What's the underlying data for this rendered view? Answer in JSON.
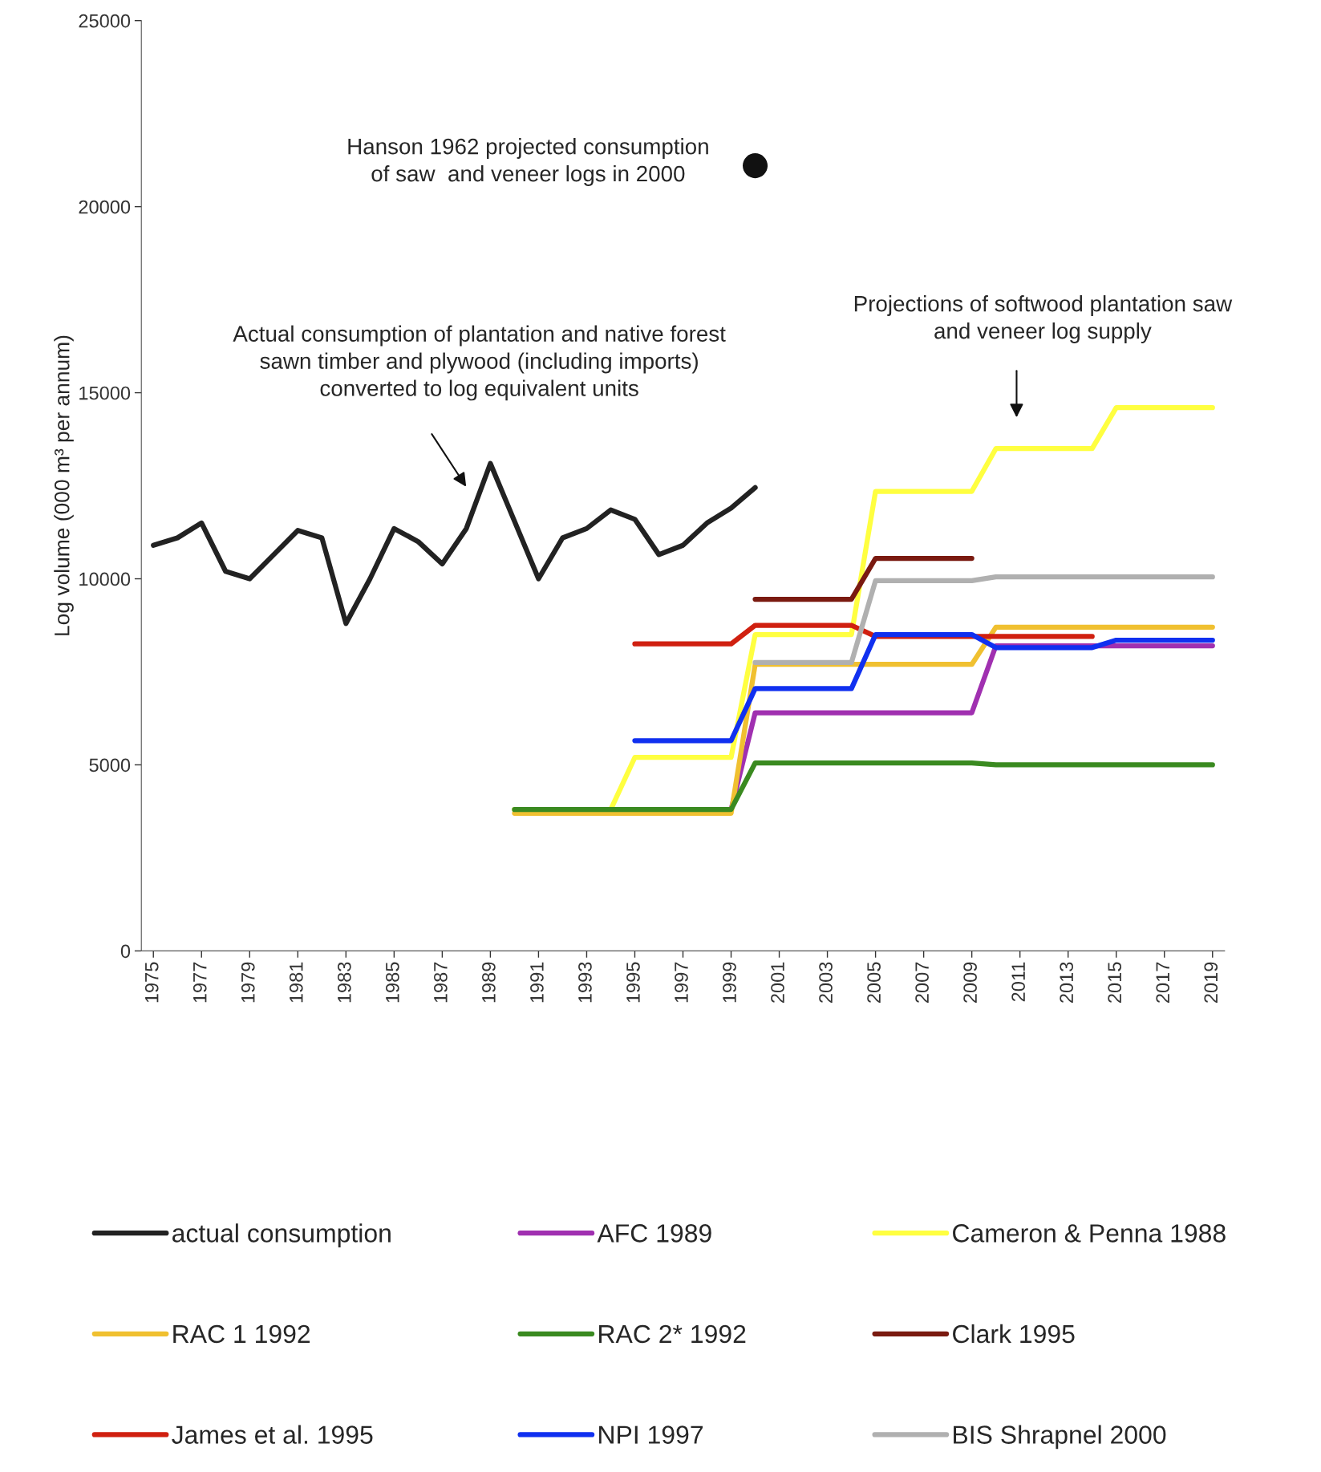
{
  "chart_data": {
    "type": "line",
    "ylabel": "Log volume (000 m³ per annum)",
    "xlim": [
      1974.5,
      2019.5
    ],
    "ylim": [
      0,
      25000
    ],
    "xticks": [
      1975,
      1977,
      1979,
      1981,
      1983,
      1985,
      1987,
      1989,
      1991,
      1993,
      1995,
      1997,
      1999,
      2001,
      2003,
      2005,
      2007,
      2009,
      2011,
      2013,
      2015,
      2017,
      2019
    ],
    "yticks": [
      0,
      5000,
      10000,
      15000,
      20000,
      25000
    ],
    "grid": false,
    "legend": "bottom",
    "line_style": "solid",
    "annotations": [
      "Hanson 1962 projected consumption\nof saw  and veneer logs in 2000",
      "Actual consumption of plantation and native forest\nsawn timber and plywood (including imports)\nconverted to log equivalent units",
      "Projections of softwood plantation saw\nand veneer log supply"
    ],
    "series": [
      {
        "name": "actual consumption",
        "color": "#222222",
        "x": [
          1975,
          1976,
          1977,
          1978,
          1979,
          1980,
          1981,
          1982,
          1983,
          1984,
          1985,
          1986,
          1987,
          1988,
          1989,
          1990,
          1991,
          1992,
          1993,
          1994,
          1995,
          1996,
          1997,
          1998,
          1999,
          2000
        ],
        "values": [
          10900,
          11100,
          11500,
          10200,
          10000,
          10650,
          11300,
          11100,
          8800,
          10000,
          11350,
          11000,
          10400,
          11350,
          13100,
          11550,
          10000,
          11100,
          11350,
          11850,
          11600,
          10650,
          10900,
          11500,
          11900,
          12450
        ]
      },
      {
        "name": "AFC 1989",
        "color": "#a030b0",
        "x": [
          1999,
          2000,
          2009,
          2010,
          2019
        ],
        "values": [
          3800,
          6400,
          6400,
          8200,
          8200
        ]
      },
      {
        "name": "Cameron & Penna 1988",
        "color": "#ffff40",
        "x": [
          1990,
          1994,
          1995,
          1999,
          2000,
          2004,
          2005,
          2009,
          2010,
          2014,
          2015,
          2019
        ],
        "values": [
          3800,
          3800,
          5200,
          5200,
          8500,
          8500,
          12350,
          12350,
          13500,
          13500,
          14600,
          14600
        ]
      },
      {
        "name": "RAC 1 1992",
        "color": "#f0c030",
        "x": [
          1990,
          1999,
          2000,
          2009,
          2010,
          2019
        ],
        "values": [
          3700,
          3700,
          7700,
          7700,
          8700,
          8700
        ]
      },
      {
        "name": "RAC 2* 1992",
        "color": "#3a8a20",
        "x": [
          1990,
          1999,
          2000,
          2009,
          2010,
          2019
        ],
        "values": [
          3800,
          3800,
          5050,
          5050,
          5000,
          5000
        ]
      },
      {
        "name": "Clark 1995",
        "color": "#7a1a10",
        "x": [
          2000,
          2004,
          2005,
          2009
        ],
        "values": [
          9450,
          9450,
          10550,
          10550
        ]
      },
      {
        "name": "James et al. 1995",
        "color": "#d02010",
        "x": [
          1995,
          1999,
          2000,
          2004,
          2005,
          2014
        ],
        "values": [
          8250,
          8250,
          8750,
          8750,
          8450,
          8450
        ]
      },
      {
        "name": "NPI 1997",
        "color": "#1030f0",
        "x": [
          1995,
          1999,
          2000,
          2004,
          2005,
          2009,
          2010,
          2014,
          2015,
          2019
        ],
        "values": [
          5650,
          5650,
          7050,
          7050,
          8500,
          8500,
          8150,
          8150,
          8350,
          8350
        ]
      },
      {
        "name": "BIS Shrapnel 2000",
        "color": "#b0b0b0",
        "x": [
          2000,
          2004,
          2005,
          2009,
          2010,
          2019
        ],
        "values": [
          7750,
          7750,
          9950,
          9950,
          10050,
          10050
        ]
      },
      {
        "type": "scatter",
        "marker": "circle",
        "color": "#111111",
        "x": [
          2000
        ],
        "values": [
          21100
        ]
      }
    ]
  }
}
